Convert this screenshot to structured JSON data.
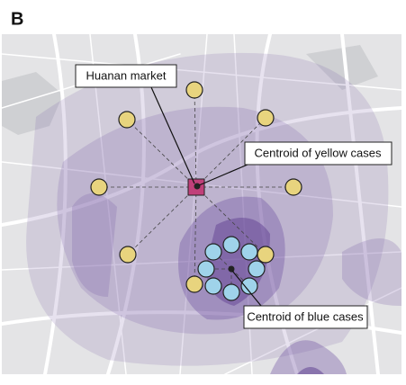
{
  "panel_label": "B",
  "annotations": [
    {
      "text": "Huanan market"
    },
    {
      "text": "Centroid of yellow cases"
    },
    {
      "text": "Centroid of blue cases"
    }
  ]
}
